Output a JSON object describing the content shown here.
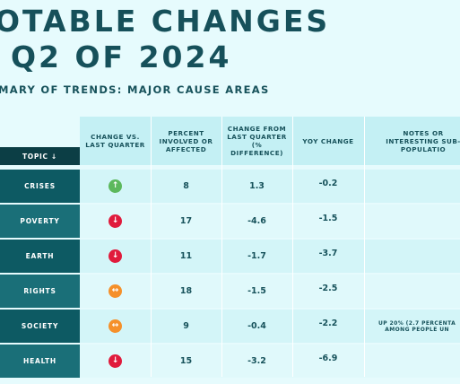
{
  "title": {
    "line1": "OTABLE CHANGES",
    "line2": "Q2 OF 2024"
  },
  "subtitle": "MARY OF TRENDS: MAJOR CAUSE AREAS",
  "columns": {
    "topic": "TOPIC ↓",
    "change": "CHANGE VS. LAST QUARTER",
    "percent": "PERCENT INVOLVED OR AFFECTED",
    "diff": "CHANGE FROM LAST QUARTER (% DIFFERENCE)",
    "yoy": "YOY CHANGE",
    "notes": "NOTES OR INTERESTING SUB-POPULATIO"
  },
  "colors": {
    "up": "#5cb85c",
    "down": "#e01b3c",
    "flat": "#f5902a",
    "topic_dark": "#0d5a63",
    "topic_light": "#1a6f78"
  },
  "rows": [
    {
      "topic": "CRISES",
      "direction": "up",
      "arrow": "↑",
      "percent": "8",
      "diff": "1.3",
      "yoy": "-0.2",
      "note": ""
    },
    {
      "topic": "POVERTY",
      "direction": "down",
      "arrow": "↓",
      "percent": "17",
      "diff": "-4.6",
      "yoy": "-1.5",
      "note": ""
    },
    {
      "topic": "EARTH",
      "direction": "down",
      "arrow": "↓",
      "percent": "11",
      "diff": "-1.7",
      "yoy": "-3.7",
      "note": ""
    },
    {
      "topic": "RIGHTS",
      "direction": "flat",
      "arrow": "↔",
      "percent": "18",
      "diff": "-1.5",
      "yoy": "-2.5",
      "note": ""
    },
    {
      "topic": "SOCIETY",
      "direction": "flat",
      "arrow": "↔",
      "percent": "9",
      "diff": "-0.4",
      "yoy": "-2.2",
      "note": "UP 20% (2.7 PERCENTA\nAMONG PEOPLE UN"
    },
    {
      "topic": "HEALTH",
      "direction": "down",
      "arrow": "↓",
      "percent": "15",
      "diff": "-3.2",
      "yoy": "-6.9",
      "note": ""
    }
  ]
}
